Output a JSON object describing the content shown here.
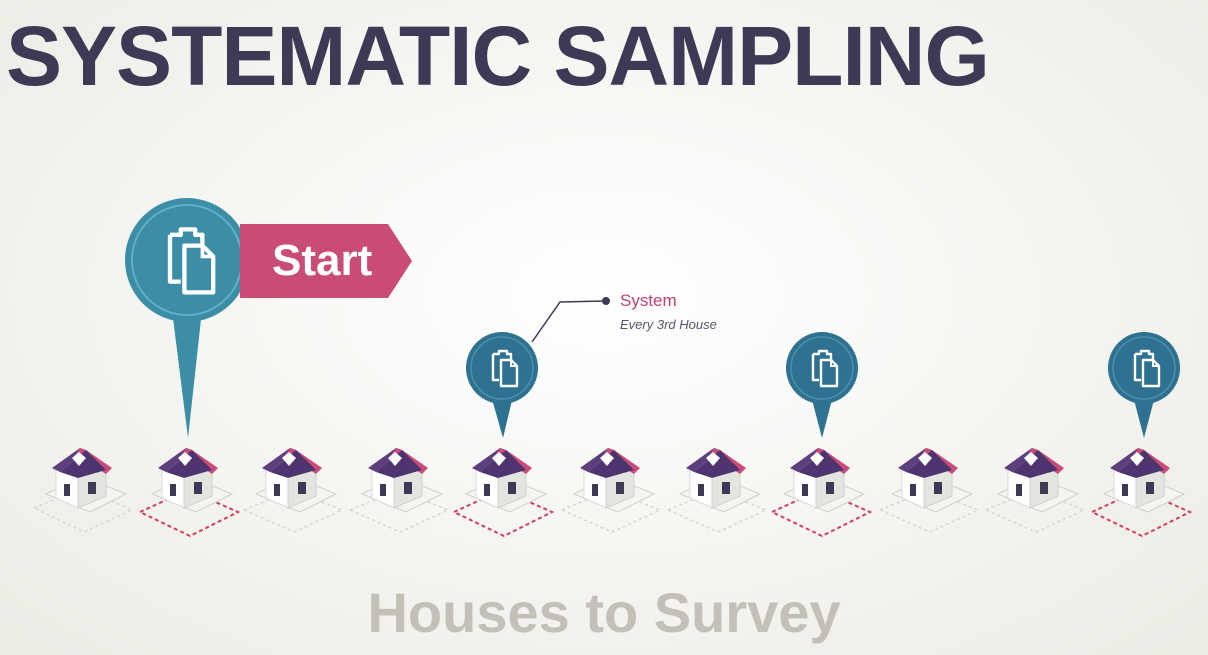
{
  "title": "SYSTEMATIC SAMPLING",
  "start_label": "Start",
  "system": {
    "label": "System",
    "detail": "Every 3rd House"
  },
  "footer": "Houses to Survey",
  "houses": [
    {
      "index": 1,
      "sampled": false,
      "marker": "none"
    },
    {
      "index": 2,
      "sampled": true,
      "marker": "start"
    },
    {
      "index": 3,
      "sampled": false,
      "marker": "none"
    },
    {
      "index": 4,
      "sampled": false,
      "marker": "none"
    },
    {
      "index": 5,
      "sampled": true,
      "marker": "small"
    },
    {
      "index": 6,
      "sampled": false,
      "marker": "none"
    },
    {
      "index": 7,
      "sampled": false,
      "marker": "none"
    },
    {
      "index": 8,
      "sampled": true,
      "marker": "small"
    },
    {
      "index": 9,
      "sampled": false,
      "marker": "none"
    },
    {
      "index": 10,
      "sampled": false,
      "marker": "none"
    },
    {
      "index": 11,
      "sampled": true,
      "marker": "small"
    }
  ],
  "colors": {
    "title": "#3d3a55",
    "start_pin": "#3b8ea5",
    "small_pin": "#2e7190",
    "start_tag": "#c94b77",
    "roof": "#5d3f7e",
    "sampled_border": "#d2405f",
    "footer": "#c3c1b7"
  },
  "icons": {
    "pin": "clipboard-icon",
    "tag": "arrow-tag"
  }
}
